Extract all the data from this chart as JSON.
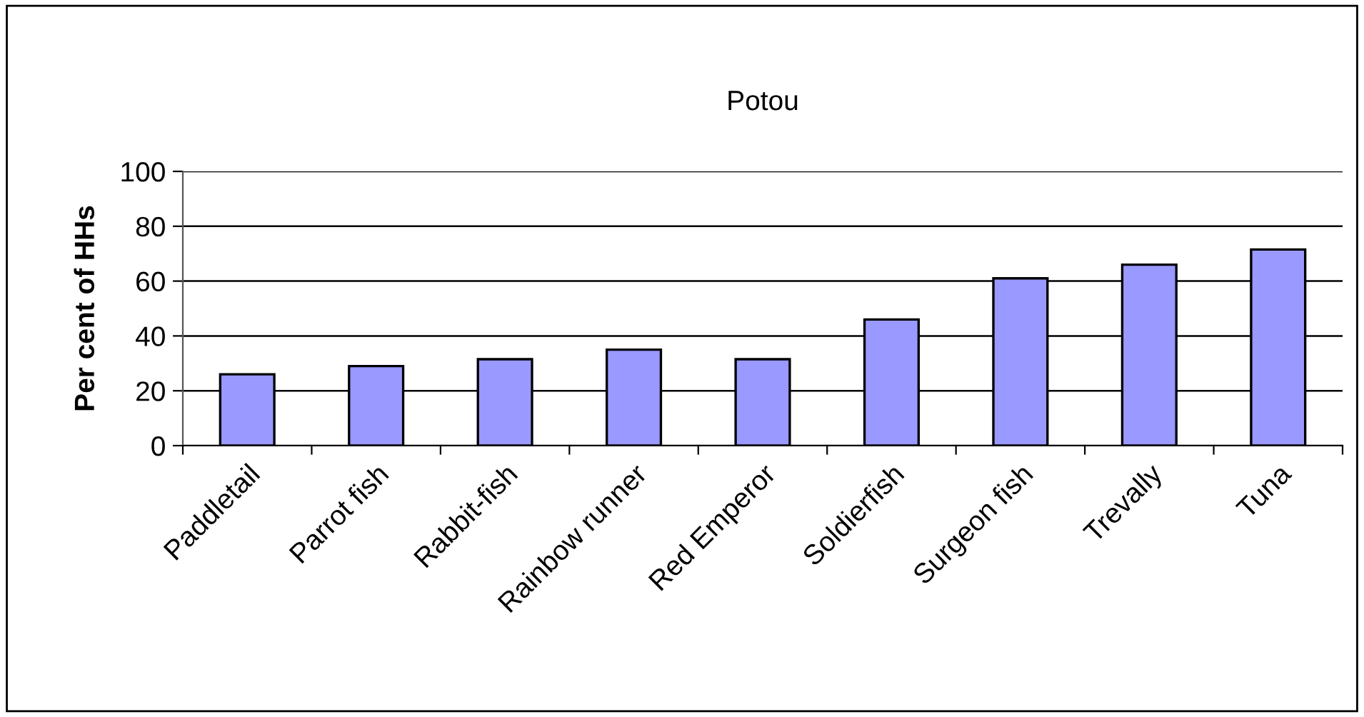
{
  "chart_data": {
    "type": "bar",
    "title": "Potou",
    "ylabel": "Per cent of HHs",
    "categories": [
      "Paddletail",
      "Parrot fish",
      "Rabbit-fish",
      "Rainbow runner",
      "Red Emperor",
      "Soldierfish",
      "Surgeon fish",
      "Trevally",
      "Tuna"
    ],
    "values": [
      26,
      29,
      31.5,
      35,
      31.5,
      46,
      61,
      66,
      71.5
    ],
    "color": "#9999ff",
    "ylim": [
      0,
      100
    ],
    "yticks": [
      0,
      20,
      40,
      60,
      80,
      100
    ],
    "grid": "y",
    "legend": false
  }
}
